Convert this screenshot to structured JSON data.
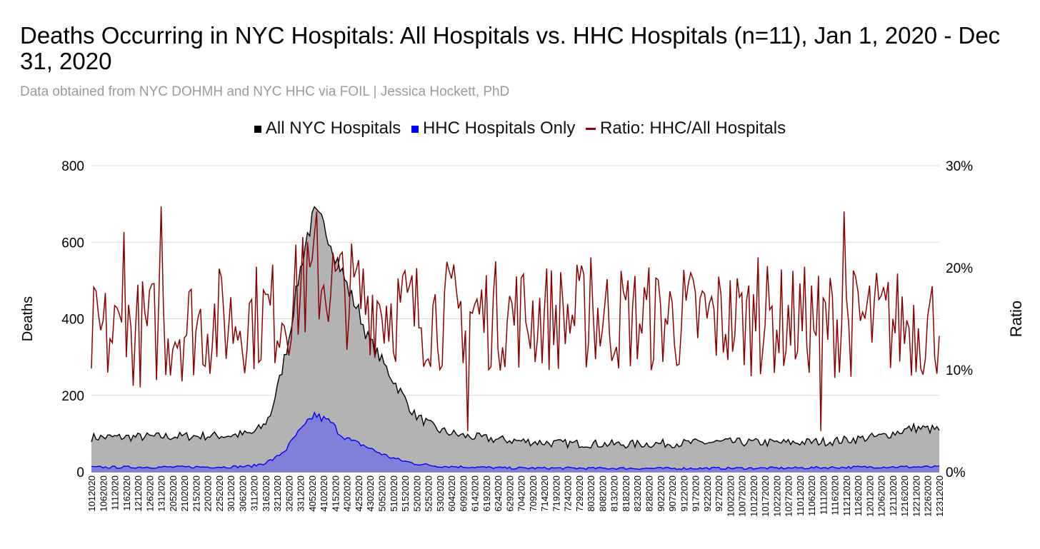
{
  "chart_data": {
    "type": "area",
    "title": "Deaths Occurring in NYC Hospitals: All Hospitals vs. HHC Hospitals (n=11), Jan 1, 2020 - Dec 31, 2020",
    "subtitle": "Data obtained from NYC DOHMH and NYC HHC via FOIL | Jessica Hockett, PhD",
    "xlabel": "",
    "ylabel": "Deaths",
    "y2label": "Ratio",
    "ylim": [
      0,
      800
    ],
    "y2lim": [
      0,
      0.3
    ],
    "y_ticks": [
      "0",
      "200",
      "400",
      "600",
      "800"
    ],
    "y2_ticks": [
      "0%",
      "10%",
      "20%",
      "30%"
    ],
    "grid": true,
    "legend_position": "top",
    "x_tick_labels": [
      "1012020",
      "1062020",
      "1112020",
      "1162020",
      "1212020",
      "1262020",
      "1312020",
      "2052020",
      "2102020",
      "2152020",
      "2202020",
      "2252020",
      "3012020",
      "3062020",
      "3112020",
      "3162020",
      "3212020",
      "3262020",
      "3312020",
      "4052020",
      "4102020",
      "4152020",
      "4202020",
      "4252020",
      "4302020",
      "5052020",
      "5102020",
      "5152020",
      "5202020",
      "5252020",
      "5302020",
      "6042020",
      "6092020",
      "6142020",
      "6192020",
      "6242020",
      "6292020",
      "7042020",
      "7092020",
      "7142020",
      "7192020",
      "7242020",
      "7292020",
      "8032020",
      "8082020",
      "8132020",
      "8182020",
      "8232020",
      "8282020",
      "9022020",
      "9072020",
      "9122020",
      "9172020",
      "9222020",
      "9272020",
      "10022020",
      "10072020",
      "10122020",
      "10172020",
      "10222020",
      "10272020",
      "11012020",
      "11062020",
      "11112020",
      "11162020",
      "11212020",
      "11262020",
      "12012020",
      "12062020",
      "12112020",
      "12162020",
      "12212020",
      "12262020",
      "12312020"
    ],
    "series": [
      {
        "name": "All NYC Hospitals",
        "color": "#000000",
        "fill": "#b3b3b3",
        "axis": "left",
        "keypoints": [
          [
            1,
            90
          ],
          [
            30,
            92
          ],
          [
            60,
            95
          ],
          [
            70,
            100
          ],
          [
            75,
            120
          ],
          [
            78,
            150
          ],
          [
            82,
            240
          ],
          [
            86,
            350
          ],
          [
            90,
            500
          ],
          [
            94,
            620
          ],
          [
            97,
            670
          ],
          [
            100,
            650
          ],
          [
            103,
            620
          ],
          [
            106,
            570
          ],
          [
            109,
            520
          ],
          [
            112,
            470
          ],
          [
            116,
            420
          ],
          [
            120,
            350
          ],
          [
            125,
            300
          ],
          [
            130,
            250
          ],
          [
            135,
            200
          ],
          [
            140,
            150
          ],
          [
            145,
            130
          ],
          [
            150,
            110
          ],
          [
            160,
            95
          ],
          [
            175,
            85
          ],
          [
            200,
            75
          ],
          [
            230,
            72
          ],
          [
            255,
            75
          ],
          [
            275,
            78
          ],
          [
            300,
            76
          ],
          [
            320,
            80
          ],
          [
            340,
            92
          ],
          [
            355,
            115
          ],
          [
            366,
            110
          ]
        ]
      },
      {
        "name": "HHC Hospitals Only",
        "color": "#0000ff",
        "fill": "#8080d8",
        "axis": "left",
        "keypoints": [
          [
            1,
            12
          ],
          [
            60,
            13
          ],
          [
            70,
            15
          ],
          [
            75,
            22
          ],
          [
            80,
            35
          ],
          [
            85,
            60
          ],
          [
            89,
            95
          ],
          [
            93,
            120
          ],
          [
            97,
            150
          ],
          [
            100,
            140
          ],
          [
            104,
            130
          ],
          [
            108,
            100
          ],
          [
            113,
            80
          ],
          [
            118,
            70
          ],
          [
            123,
            55
          ],
          [
            128,
            42
          ],
          [
            133,
            32
          ],
          [
            140,
            22
          ],
          [
            150,
            15
          ],
          [
            180,
            10
          ],
          [
            250,
            9
          ],
          [
            300,
            10
          ],
          [
            340,
            13
          ],
          [
            366,
            13
          ]
        ]
      },
      {
        "name": "Ratio: HHC/All Hospitals",
        "color": "#8b0000",
        "axis": "right",
        "keypoints": [
          [
            1,
            0.13
          ],
          [
            80,
            0.155
          ],
          [
            100,
            0.19
          ],
          [
            110,
            0.175
          ],
          [
            140,
            0.155
          ],
          [
            366,
            0.145
          ]
        ],
        "spikes": [
          [
            15,
            0.235
          ],
          [
            31,
            0.26
          ],
          [
            92,
            0.23
          ],
          [
            98,
            0.255
          ],
          [
            288,
            0.21
          ],
          [
            325,
            0.255
          ],
          [
            216,
            0.21
          ],
          [
            163,
            0.04
          ],
          [
            315,
            0.04
          ]
        ]
      }
    ]
  }
}
